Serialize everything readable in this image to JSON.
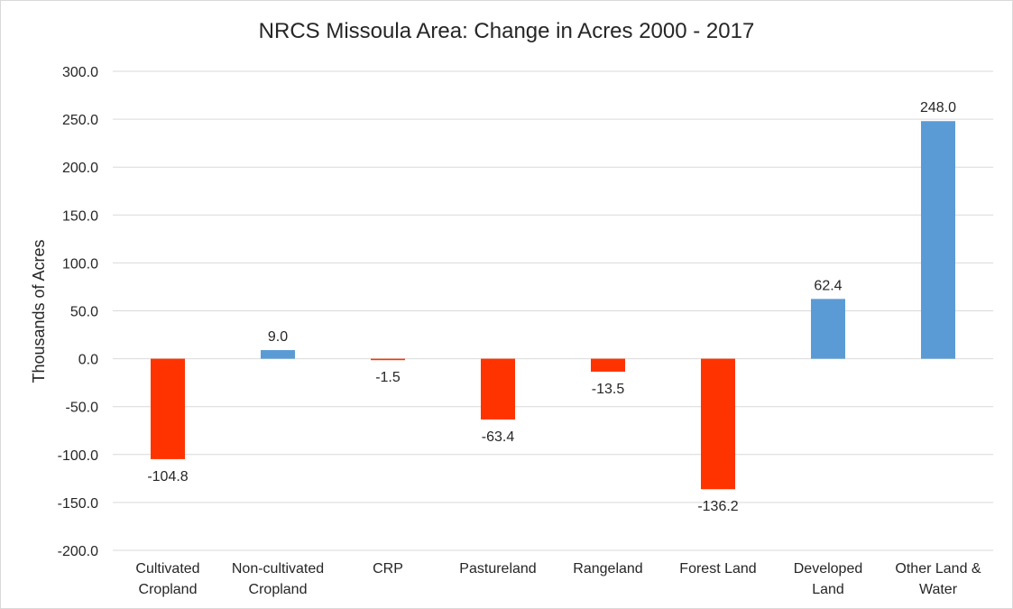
{
  "chart_data": {
    "type": "bar",
    "title": "NRCS Missoula Area: Change in Acres 2000 - 2017",
    "ylabel": "Thousands of Acres",
    "xlabel": "",
    "categories": [
      [
        "Cultivated",
        "Cropland"
      ],
      [
        "Non-cultivated",
        "Cropland"
      ],
      [
        "CRP"
      ],
      [
        "Pastureland"
      ],
      [
        "Rangeland"
      ],
      [
        "Forest Land"
      ],
      [
        "Developed",
        "Land"
      ],
      [
        "Other Land &",
        "Water"
      ]
    ],
    "values": [
      -104.8,
      9.0,
      -1.5,
      -63.4,
      -13.5,
      -136.2,
      62.4,
      248.0
    ],
    "value_labels": [
      "-104.8",
      "9.0",
      "-1.5",
      "-63.4",
      "-13.5",
      "-136.2",
      "62.4",
      "248.0"
    ],
    "ylim": [
      -200,
      300
    ],
    "yticks": [
      300,
      250,
      200,
      150,
      100,
      50,
      0,
      -50,
      -100,
      -150,
      -200
    ],
    "ytick_labels": [
      "300.0",
      "250.0",
      "200.0",
      "150.0",
      "100.0",
      "50.0",
      "0.0",
      "-50.0",
      "-100.0",
      "-150.0",
      "-200.0"
    ],
    "grid": true,
    "legend": "none",
    "colors": {
      "positive": "#5b9bd5",
      "negative": "#ff3300",
      "grid": "#d9d9d9",
      "text": "#262626"
    }
  }
}
